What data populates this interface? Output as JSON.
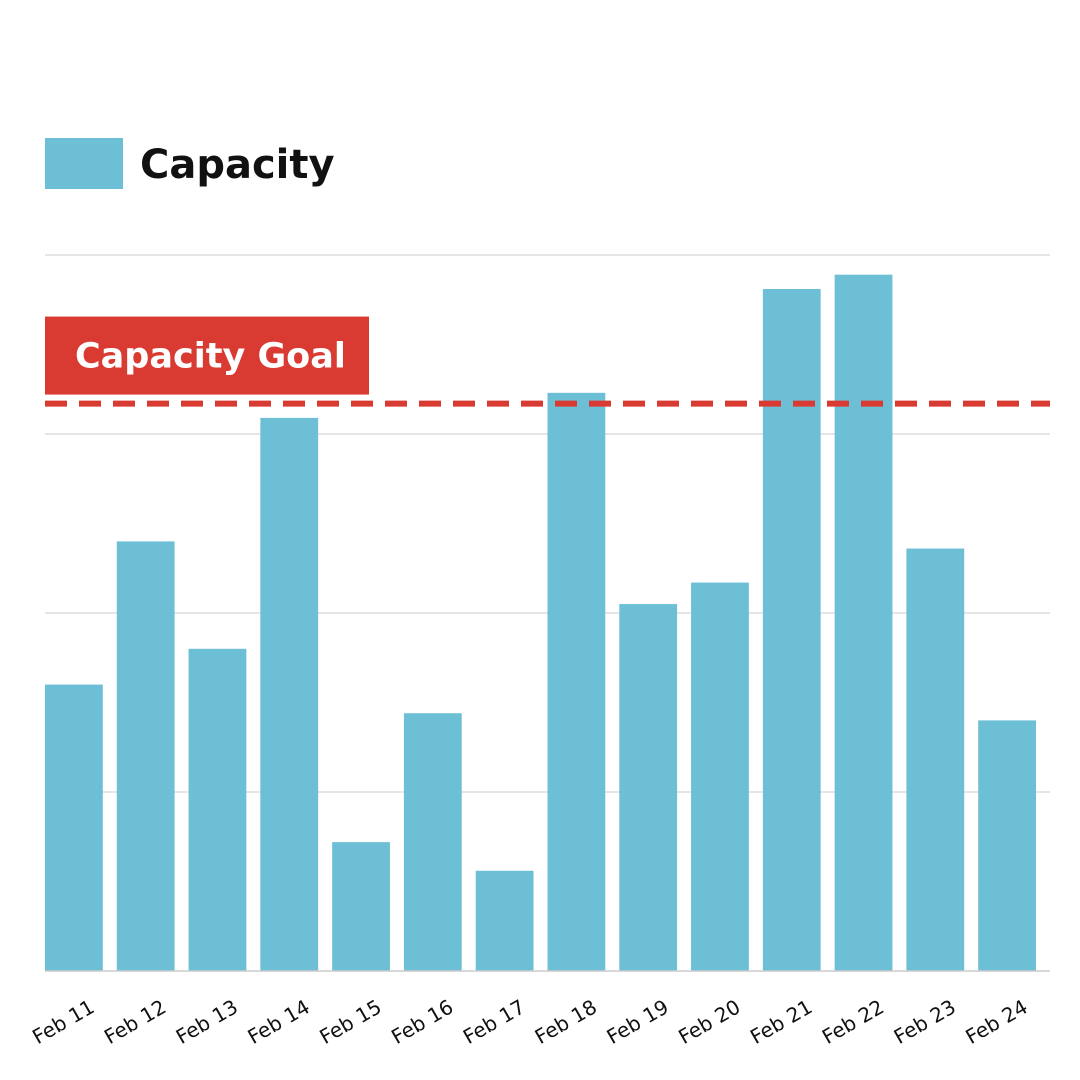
{
  "chart_data": {
    "type": "bar",
    "title": "",
    "xlabel": "",
    "ylabel": "",
    "categories": [
      "Feb 11",
      "Feb 12",
      "Feb 13",
      "Feb 14",
      "Feb 15",
      "Feb 16",
      "Feb 17",
      "Feb 18",
      "Feb 19",
      "Feb 20",
      "Feb 21",
      "Feb 22",
      "Feb 23",
      "Feb 24"
    ],
    "series": [
      {
        "name": "Capacity",
        "values": [
          1.6,
          2.4,
          1.8,
          3.09,
          0.72,
          1.44,
          0.56,
          3.23,
          2.05,
          2.17,
          3.81,
          3.89,
          2.36,
          1.4
        ]
      }
    ],
    "ylim": [
      0,
      4
    ],
    "gridlines": [
      0,
      1,
      2,
      3,
      4
    ],
    "y_axis_labels": "hidden",
    "legend": {
      "position": "top-left",
      "entries": [
        {
          "label": "Capacity",
          "color": "#6cbfd5"
        }
      ]
    },
    "reference_line": {
      "label": "Capacity Goal",
      "value": 3.17,
      "style": "dashed",
      "color": "#d93b32"
    },
    "colors": {
      "bar": "#6cbfd5",
      "goal": "#d93b32",
      "grid": "#dddddd",
      "text": "#111111"
    }
  }
}
